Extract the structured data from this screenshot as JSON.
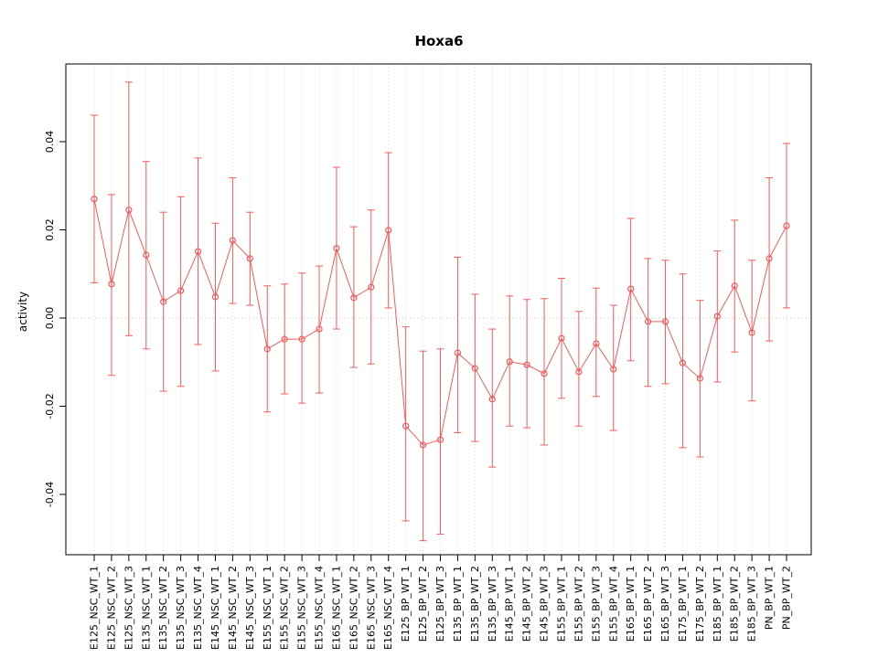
{
  "chart_data": {
    "type": "line",
    "title": "Hoxa6",
    "xlabel": "",
    "ylabel": "activity",
    "ylim": [
      -0.054,
      0.058
    ],
    "yticks": [
      -0.04,
      -0.02,
      0,
      0.02,
      0.04
    ],
    "ytick_labels": [
      "-0.04",
      "-0.02",
      "0.00",
      "0.02",
      "0.04"
    ],
    "grid": "dotted vertical line per category, dotted horizontal line at 0",
    "legend": "none",
    "point_style": "open-circle with error bars and caps",
    "colors": {
      "series": "#f15b5b",
      "grid": "#d9d9d9",
      "zero_line": "#e9bcbc",
      "axis": "#000000"
    },
    "categories": [
      "E125_NSC_WT_1",
      "E125_NSC_WT_2",
      "E125_NSC_WT_3",
      "E135_NSC_WT_1",
      "E135_NSC_WT_2",
      "E135_NSC_WT_3",
      "E135_NSC_WT_4",
      "E145_NSC_WT_1",
      "E145_NSC_WT_2",
      "E145_NSC_WT_3",
      "E155_NSC_WT_1",
      "E155_NSC_WT_2",
      "E155_NSC_WT_3",
      "E155_NSC_WT_4",
      "E165_NSC_WT_1",
      "E165_NSC_WT_2",
      "E165_NSC_WT_3",
      "E165_NSC_WT_4",
      "E125_BP_WT_1",
      "E125_BP_WT_2",
      "E125_BP_WT_3",
      "E135_BP_WT_1",
      "E135_BP_WT_2",
      "E135_BP_WT_3",
      "E145_BP_WT_1",
      "E145_BP_WT_2",
      "E145_BP_WT_3",
      "E155_BP_WT_1",
      "E155_BP_WT_2",
      "E155_BP_WT_3",
      "E155_BP_WT_4",
      "E165_BP_WT_1",
      "E165_BP_WT_2",
      "E165_BP_WT_3",
      "E175_BP_WT_1",
      "E175_BP_WT_2",
      "E185_BP_WT_1",
      "E185_BP_WT_2",
      "E185_BP_WT_3",
      "PN_BP_WT_1",
      "PN_BP_WT_2"
    ],
    "series": [
      {
        "name": "activity",
        "values": [
          0.027,
          0.0077,
          0.0245,
          0.0143,
          0.0037,
          0.0062,
          0.0151,
          0.0048,
          0.0176,
          0.0135,
          -0.007,
          -0.0048,
          -0.0048,
          -0.0025,
          0.0158,
          0.0046,
          0.007,
          0.0199,
          -0.0245,
          -0.0288,
          -0.0276,
          -0.0079,
          -0.0114,
          -0.0184,
          -0.0099,
          -0.0106,
          -0.0126,
          -0.0046,
          -0.0122,
          -0.0058,
          -0.0116,
          0.0066,
          -0.0008,
          -0.0008,
          -0.0102,
          -0.0137,
          0.0004,
          0.0073,
          -0.0033,
          0.0135,
          0.0209
        ],
        "lower": [
          0.008,
          -0.013,
          -0.004,
          -0.007,
          -0.0166,
          -0.0155,
          -0.006,
          -0.012,
          0.0033,
          0.0029,
          -0.0213,
          -0.0172,
          -0.0193,
          -0.017,
          -0.0025,
          -0.0112,
          -0.0104,
          0.0023,
          -0.046,
          -0.0505,
          -0.049,
          -0.026,
          -0.028,
          -0.0338,
          -0.0245,
          -0.0249,
          -0.0288,
          -0.0182,
          -0.0245,
          -0.0178,
          -0.0255,
          -0.0097,
          -0.0155,
          -0.0149,
          -0.0294,
          -0.0315,
          -0.0145,
          -0.0077,
          -0.0188,
          -0.0052,
          0.0023
        ],
        "upper": [
          0.046,
          0.028,
          0.0535,
          0.0355,
          0.024,
          0.0275,
          0.0363,
          0.0215,
          0.0318,
          0.024,
          0.0073,
          0.0077,
          0.0102,
          0.0118,
          0.0342,
          0.0207,
          0.0245,
          0.0375,
          -0.002,
          -0.0075,
          -0.007,
          0.0138,
          0.0054,
          -0.0025,
          0.005,
          0.0042,
          0.0044,
          0.009,
          0.0015,
          0.0068,
          0.0029,
          0.0226,
          0.0135,
          0.0131,
          0.01,
          0.004,
          0.0152,
          0.0222,
          0.0131,
          0.0318,
          0.0396
        ]
      }
    ]
  }
}
